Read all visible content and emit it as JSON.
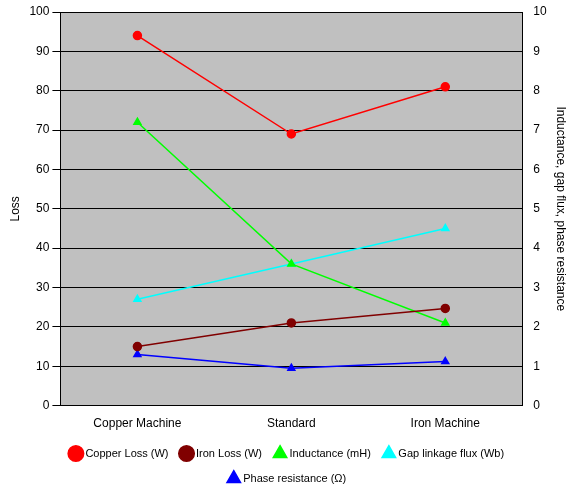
{
  "chart_data": {
    "type": "line",
    "categories": [
      "Copper Machine",
      "Standard",
      "Iron Machine"
    ],
    "y_label": "Loss",
    "y2_label": "Inductance, gap flux, phase resistance",
    "ylim": [
      0,
      100
    ],
    "yticks": [
      0,
      10,
      20,
      30,
      40,
      50,
      60,
      70,
      80,
      90,
      100
    ],
    "y2lim": [
      0,
      10
    ],
    "y2ticks": [
      0,
      1,
      2,
      3,
      4,
      5,
      6,
      7,
      8,
      9,
      10
    ],
    "grid": true,
    "legend": "bottom",
    "series": [
      {
        "name": "Copper Loss (W)",
        "color": "#ff0000",
        "marker": "circle",
        "values": [
          94,
          69,
          81
        ]
      },
      {
        "name": "Iron Loss (W)",
        "color": "#800000",
        "marker": "circle",
        "values": [
          15,
          21,
          24.7
        ]
      },
      {
        "name": "Inductance (mH)",
        "color": "#00ff00",
        "marker": "triangle",
        "axis": "y2",
        "values": [
          7.2,
          3.6,
          2.1
        ]
      },
      {
        "name": "Gap linkage flux (Wb)",
        "color": "#00ffff",
        "marker": "triangle",
        "axis": "y2",
        "values": [
          2.7,
          3.6,
          4.5
        ]
      },
      {
        "name": "Phase resistance (Ω)",
        "color": "#0000ff",
        "marker": "triangle",
        "axis": "y2",
        "values": [
          1.3,
          0.95,
          1.12
        ]
      }
    ]
  }
}
